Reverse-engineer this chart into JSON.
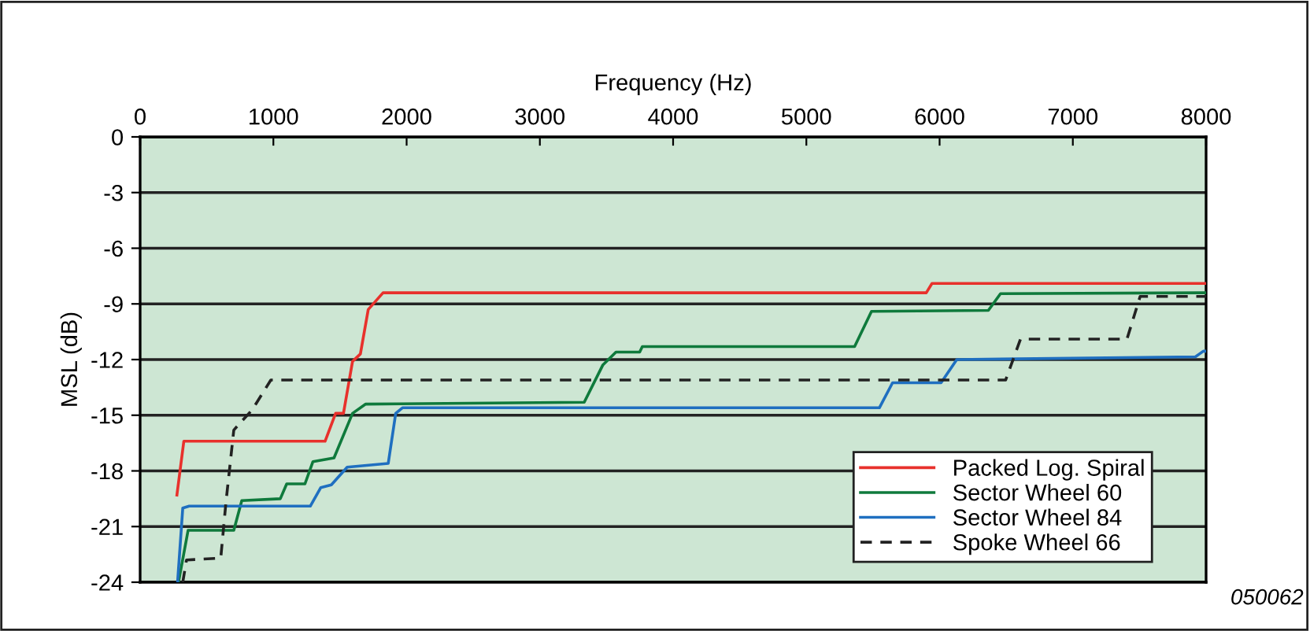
{
  "chart_data": {
    "type": "line",
    "xlabel": "Frequency (Hz)",
    "ylabel": "MSL (dB)",
    "xlim": [
      0,
      8000
    ],
    "xticks": [
      0,
      1000,
      2000,
      3000,
      4000,
      5000,
      6000,
      7000,
      8000
    ],
    "ylim": [
      -24,
      0
    ],
    "yticks": [
      0,
      -3,
      -6,
      -9,
      -12,
      -15,
      -18,
      -21,
      -24
    ],
    "grid": "y",
    "legend": "bottom right",
    "annotations": [
      "050062"
    ],
    "series": [
      {
        "name": "Packed Log. Spiral",
        "color": "#e8312c",
        "line_style": "solid",
        "x": [
          276,
          328,
          1388,
          1467,
          1526,
          1594,
          1653,
          1712,
          1823,
          5900,
          5943,
          8000
        ],
        "values": [
          -19.3,
          -16.4,
          -16.4,
          -14.9,
          -14.9,
          -12.1,
          -11.7,
          -9.3,
          -8.4,
          -8.4,
          -7.9,
          -7.9
        ]
      },
      {
        "name": "Sector Wheel 60",
        "color": "#0f7a3c",
        "line_style": "solid",
        "x": [
          288,
          360,
          703,
          763,
          1052,
          1100,
          1237,
          1297,
          1455,
          1594,
          1693,
          3333,
          3472,
          3571,
          3749,
          3769,
          5362,
          5489,
          6366,
          6457,
          8000
        ],
        "values": [
          -24,
          -21.2,
          -21.2,
          -19.6,
          -19.5,
          -18.7,
          -18.7,
          -17.5,
          -17.3,
          -14.9,
          -14.4,
          -14.3,
          -12.3,
          -11.6,
          -11.6,
          -11.3,
          -11.3,
          -9.4,
          -9.35,
          -8.45,
          -8.4
        ]
      },
      {
        "name": "Sector Wheel 84",
        "color": "#1f6fc0",
        "line_style": "solid",
        "x": [
          281,
          320,
          368,
          1277,
          1356,
          1435,
          1554,
          1862,
          1918,
          1969,
          5548,
          5647,
          6011,
          6129,
          7920,
          7979,
          8000
        ],
        "values": [
          -24,
          -20.0,
          -19.9,
          -19.9,
          -18.9,
          -18.75,
          -17.8,
          -17.6,
          -14.9,
          -14.6,
          -14.6,
          -13.25,
          -13.25,
          -12.0,
          -11.85,
          -11.55,
          -11.55
        ]
      },
      {
        "name": "Spoke Wheel 66",
        "color": "#222222",
        "line_style": "dashed",
        "x": [
          320,
          348,
          605,
          644,
          703,
          842,
          981,
          6496,
          6607,
          7406,
          7505,
          8000
        ],
        "values": [
          -24,
          -22.8,
          -22.7,
          -19.7,
          -15.8,
          -14.7,
          -13.1,
          -13.1,
          -10.9,
          -10.9,
          -8.6,
          -8.6
        ]
      }
    ]
  }
}
